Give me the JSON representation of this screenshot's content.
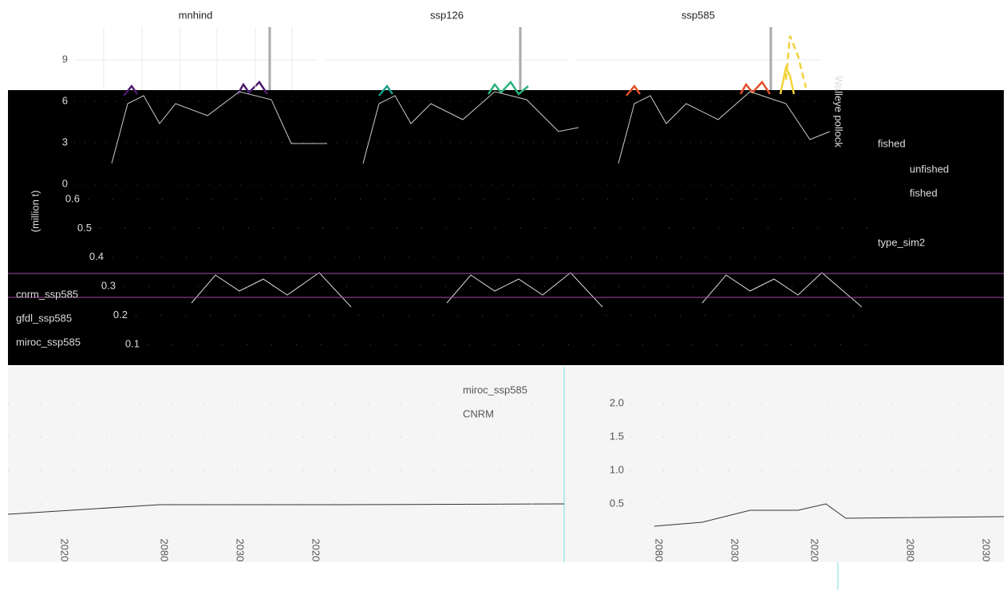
{
  "facets": [
    "mnhind",
    "ssp126",
    "ssp585"
  ],
  "top_axis": {
    "yticks": [
      9,
      6,
      3,
      0
    ],
    "ylim": [
      0,
      9
    ]
  },
  "legend": {
    "title": "fished",
    "items": [
      "unfished",
      "fished"
    ],
    "title2": "type_sim2",
    "side_label": "Walleye pollock"
  },
  "mid_axis": {
    "yticks": [
      0.6,
      0.5,
      0.4,
      0.3,
      0.2,
      0.1
    ],
    "ylim": [
      0.1,
      0.6
    ],
    "label": "(million t)"
  },
  "mid_series": [
    "cnrm_ssp585",
    "gfdl_ssp585",
    "miroc_ssp585"
  ],
  "bottom_axis": {
    "yticks": [
      {
        "value": 2,
        "label": "2.0"
      },
      {
        "value": 1.5,
        "label": "1.5"
      },
      {
        "value": 1,
        "label": "1.0"
      },
      {
        "value": 0.5,
        "label": "0.5"
      }
    ],
    "ylim": [
      0.5,
      2
    ]
  },
  "bottom_legend": [
    "miroc_ssp585",
    "CNRM"
  ],
  "bottom_xticks": [
    "2020",
    "2080",
    "2030",
    "2020",
    "2080",
    "2030",
    "2020",
    "2080",
    "2030"
  ]
}
